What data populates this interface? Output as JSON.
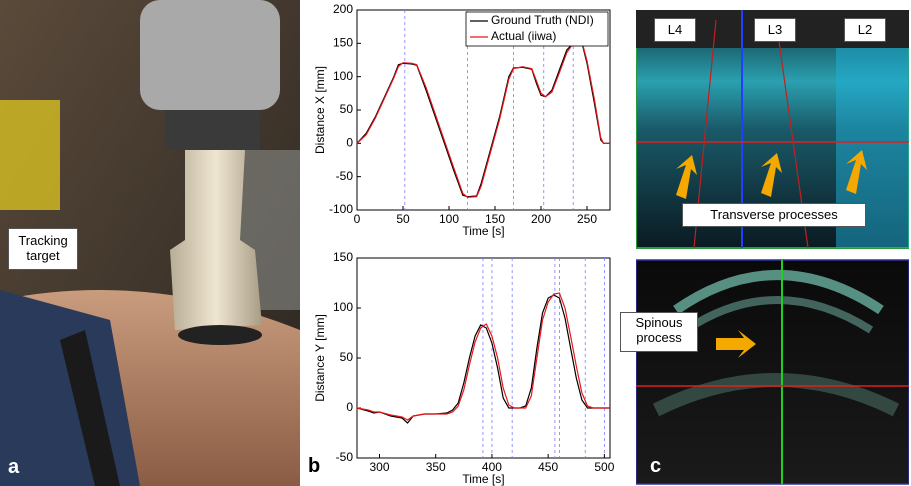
{
  "chart_data": [
    {
      "type": "line",
      "y_label": "Distance X [mm]",
      "x_label": "Time [s]",
      "x": [
        0,
        10,
        20,
        30,
        40,
        45,
        50,
        60,
        65,
        75,
        85,
        95,
        105,
        115,
        120,
        130,
        135,
        145,
        155,
        165,
        170,
        180,
        190,
        195,
        200,
        205,
        212,
        220,
        228,
        235,
        245,
        250,
        258,
        265,
        268,
        275
      ],
      "series": [
        {
          "name": "Ground Truth (NDI)",
          "color": "#000000",
          "values": [
            0,
            15,
            40,
            70,
            100,
            118,
            120,
            119,
            117,
            80,
            40,
            0,
            -40,
            -78,
            -80,
            -79,
            -60,
            -10,
            40,
            100,
            113,
            114,
            111,
            90,
            72,
            70,
            80,
            110,
            140,
            150,
            148,
            120,
            60,
            5,
            0,
            0
          ]
        },
        {
          "name": "Actual (iiwa)",
          "color": "#e8161b",
          "values": [
            0,
            13,
            38,
            68,
            98,
            115,
            121,
            120,
            118,
            84,
            44,
            4,
            -36,
            -75,
            -81,
            -80,
            -64,
            -14,
            36,
            96,
            112,
            115,
            112,
            94,
            75,
            70,
            77,
            106,
            136,
            150,
            150,
            124,
            66,
            8,
            0,
            0
          ]
        }
      ],
      "xlim": [
        0,
        275
      ],
      "xticks": [
        0,
        50,
        100,
        150,
        200,
        250
      ],
      "ylim": [
        -100,
        200
      ],
      "yticks": [
        -100,
        -50,
        0,
        50,
        100,
        150,
        200
      ],
      "vlines": [
        52,
        120,
        170,
        203,
        235
      ],
      "vline_color": "#7b7bff",
      "legend": "upper right"
    },
    {
      "type": "line",
      "y_label": "Distance Y [mm]",
      "x_label": "Time [s]",
      "x": [
        280,
        290,
        295,
        300,
        310,
        320,
        325,
        330,
        340,
        350,
        360,
        365,
        370,
        375,
        380,
        385,
        390,
        395,
        400,
        405,
        410,
        415,
        420,
        425,
        430,
        435,
        440,
        445,
        450,
        455,
        460,
        465,
        470,
        475,
        480,
        485,
        490,
        500,
        505
      ],
      "series": [
        {
          "name": "Ground Truth (NDI)",
          "color": "#000000",
          "values": [
            0,
            -3,
            -5,
            -4,
            -8,
            -10,
            -15,
            -8,
            -6,
            -6,
            -5,
            -2,
            5,
            25,
            50,
            72,
            83,
            80,
            65,
            40,
            10,
            0,
            0,
            0,
            2,
            20,
            60,
            95,
            110,
            113,
            110,
            90,
            60,
            30,
            8,
            0,
            0,
            0,
            0
          ]
        },
        {
          "name": "Actual (iiwa)",
          "color": "#e8161b",
          "values": [
            0,
            -2,
            -4,
            -4,
            -7,
            -9,
            -12,
            -8,
            -6,
            -6,
            -6,
            -4,
            2,
            18,
            43,
            66,
            80,
            84,
            72,
            50,
            20,
            3,
            0,
            0,
            0,
            12,
            50,
            88,
            106,
            114,
            115,
            100,
            72,
            42,
            15,
            2,
            0,
            0,
            0
          ]
        }
      ],
      "xlim": [
        280,
        505
      ],
      "xticks": [
        300,
        350,
        400,
        450,
        500
      ],
      "ylim": [
        -50,
        150
      ],
      "yticks": [
        -50,
        0,
        50,
        100,
        150
      ],
      "vlines": [
        392,
        400,
        418,
        456,
        460,
        483,
        500
      ],
      "vline_color": "#7b7bff"
    }
  ],
  "panels": {
    "a": {
      "label": "a",
      "annotation": "Tracking target"
    },
    "b": {
      "label": "b"
    },
    "c": {
      "label": "c",
      "levels": [
        "L4",
        "L3",
        "L2"
      ],
      "top_annotation": "Transverse processes",
      "bottom_annotation": "Spinous process"
    }
  }
}
